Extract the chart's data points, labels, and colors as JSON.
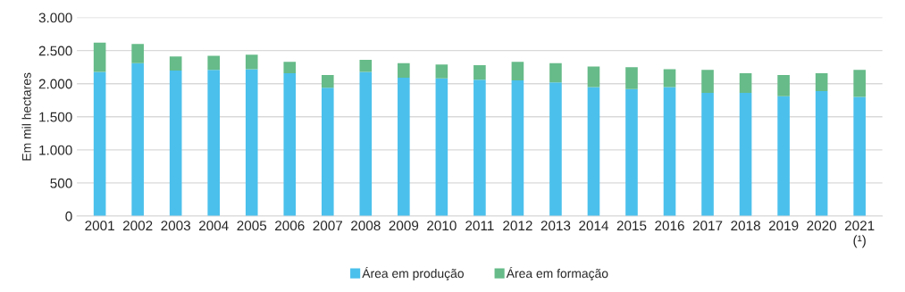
{
  "chart_data": {
    "type": "bar",
    "stacked": true,
    "ylabel": "Em mil hectares",
    "categories": [
      "2001",
      "2002",
      "2003",
      "2004",
      "2005",
      "2006",
      "2007",
      "2008",
      "2009",
      "2010",
      "2011",
      "2012",
      "2013",
      "2014",
      "2015",
      "2016",
      "2017",
      "2018",
      "2019",
      "2020",
      "2021\n(¹)"
    ],
    "series": [
      {
        "name": "Área em produção",
        "color": "#4bc0ec",
        "values": [
          2180,
          2310,
          2200,
          2210,
          2220,
          2160,
          1940,
          2180,
          2090,
          2080,
          2060,
          2050,
          2020,
          1950,
          1920,
          1950,
          1860,
          1860,
          1810,
          1890,
          1800
        ]
      },
      {
        "name": "Área em formação",
        "color": "#66bb88",
        "values": [
          440,
          290,
          210,
          210,
          220,
          170,
          190,
          180,
          220,
          210,
          220,
          280,
          290,
          310,
          330,
          270,
          350,
          300,
          320,
          270,
          410
        ]
      }
    ],
    "ylim": [
      0,
      3000
    ],
    "yticks": [
      0,
      500,
      {
        "value": 1000,
        "label": "1.000"
      },
      {
        "value": 1500,
        "label": "1.500"
      },
      {
        "value": 2000,
        "label": "2.000"
      },
      {
        "value": 2500,
        "label": "2.500"
      },
      {
        "value": 3000,
        "label": "3.000"
      }
    ],
    "grid": "y",
    "legend": "bottom"
  }
}
